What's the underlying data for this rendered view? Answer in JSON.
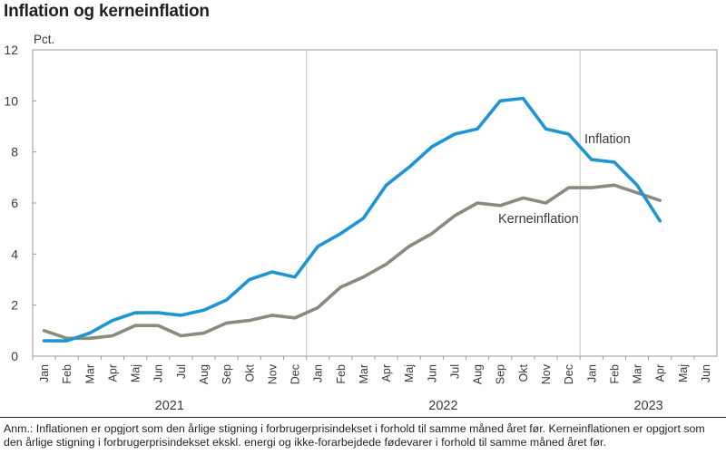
{
  "chart_data": {
    "type": "line",
    "title": "Inflation og kerneinflation",
    "ylabel": "Pct.",
    "ylim": [
      0,
      12
    ],
    "yticks": [
      "0",
      "2",
      "4",
      "6",
      "8",
      "10",
      "12"
    ],
    "categories": [
      "Jan",
      "Feb",
      "Mar",
      "Apr",
      "Maj",
      "Jun",
      "Jul",
      "Aug",
      "Sep",
      "Okt",
      "Nov",
      "Dec",
      "Jan",
      "Feb",
      "Mar",
      "Apr",
      "Maj",
      "Jun",
      "Jul",
      "Aug",
      "Sep",
      "Okt",
      "Nov",
      "Dec",
      "Jan",
      "Feb",
      "Mar",
      "Apr",
      "Maj",
      "Jun"
    ],
    "years": [
      {
        "label": "2021",
        "start_index": 0,
        "end_index": 11
      },
      {
        "label": "2022",
        "start_index": 12,
        "end_index": 23
      },
      {
        "label": "2023",
        "start_index": 24,
        "end_index": 29
      }
    ],
    "series": [
      {
        "name": "Inflation",
        "color": "#1e95d3",
        "values": [
          0.6,
          0.6,
          0.9,
          1.4,
          1.7,
          1.7,
          1.6,
          1.8,
          2.2,
          3.0,
          3.3,
          3.1,
          4.3,
          4.8,
          5.4,
          6.7,
          7.4,
          8.2,
          8.7,
          8.9,
          10.0,
          10.1,
          8.9,
          8.7,
          7.7,
          7.6,
          6.7,
          5.3,
          null,
          null
        ]
      },
      {
        "name": "Kerneinflation",
        "color": "#8c8a7c",
        "values": [
          1.0,
          0.7,
          0.7,
          0.8,
          1.2,
          1.2,
          0.8,
          0.9,
          1.3,
          1.4,
          1.6,
          1.5,
          1.9,
          2.7,
          3.1,
          3.6,
          4.3,
          4.8,
          5.5,
          6.0,
          5.9,
          6.2,
          6.0,
          6.6,
          6.6,
          6.7,
          6.4,
          6.1,
          null,
          null
        ]
      }
    ],
    "grid": "vertical year separators",
    "legend": "inline labels"
  },
  "footnote": "Anm.: Inflationen er opgjort som den årlige stigning i forbrugerprisindekset i forhold til samme måned året før. Kerneinflationen er opgjort som den årlige stigning i forbrugerprisindekset ekskl. energi og ikke-forarbejdede fødevarer i forhold til samme måned året før."
}
